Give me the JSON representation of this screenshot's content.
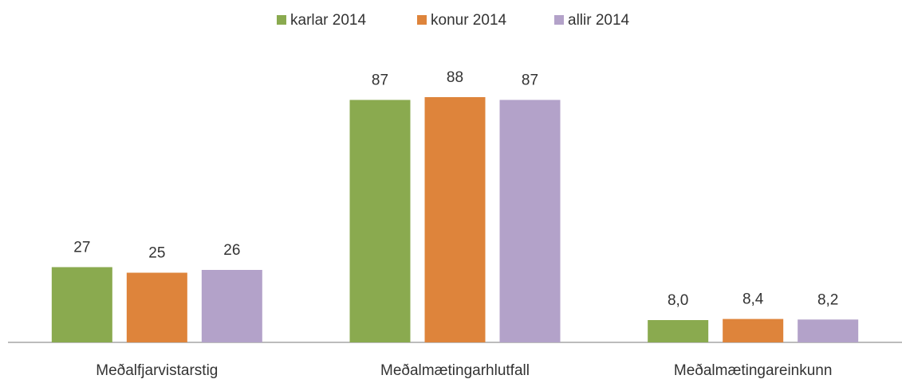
{
  "chart_data": {
    "type": "bar",
    "categories": [
      "Meðalfjarvistarstig",
      "Meðalmætingarhlutfall",
      "Meðalmætingareinkunn"
    ],
    "series": [
      {
        "name": "karlar 2014",
        "color": "#8aaa4f",
        "values": [
          27,
          87,
          8.0
        ],
        "value_labels": [
          "27",
          "87",
          "8,0"
        ]
      },
      {
        "name": "konur 2014",
        "color": "#de843b",
        "values": [
          25,
          88,
          8.4
        ],
        "value_labels": [
          "25",
          "88",
          "8,4"
        ]
      },
      {
        "name": "allir 2014",
        "color": "#b3a2c9",
        "values": [
          26,
          87,
          8.2
        ],
        "value_labels": [
          "26",
          "87",
          "8,2"
        ]
      }
    ],
    "ylim": [
      0,
      100
    ],
    "legend": "top"
  }
}
